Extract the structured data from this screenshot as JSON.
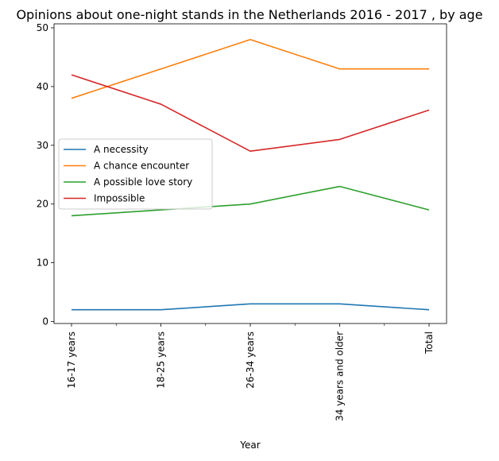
{
  "chart_data": {
    "type": "line",
    "title": "Opinions about one-night stands in the Netherlands 2016 - 2017 , by age",
    "xlabel": "Year",
    "ylabel": "",
    "categories": [
      "16-17 years",
      "18-25 years",
      "26-34 years",
      "34 years and older",
      "Total"
    ],
    "ylim": [
      0,
      50
    ],
    "yticks": [
      "0",
      "10",
      "20",
      "30",
      "40",
      "50"
    ],
    "grid": false,
    "legend_position": "center-left",
    "series": [
      {
        "name": "A necessity",
        "color": "#1f77b4",
        "values": [
          2,
          2,
          3,
          3,
          2
        ]
      },
      {
        "name": "A chance encounter",
        "color": "#ff7f0e",
        "values": [
          38,
          43,
          48,
          43,
          43
        ]
      },
      {
        "name": "A possible love story",
        "color": "#2ca02c",
        "values": [
          18,
          19,
          20,
          23,
          19
        ]
      },
      {
        "name": "Impossible",
        "color": "#d62728",
        "values": [
          42,
          37,
          29,
          31,
          36
        ]
      }
    ]
  }
}
